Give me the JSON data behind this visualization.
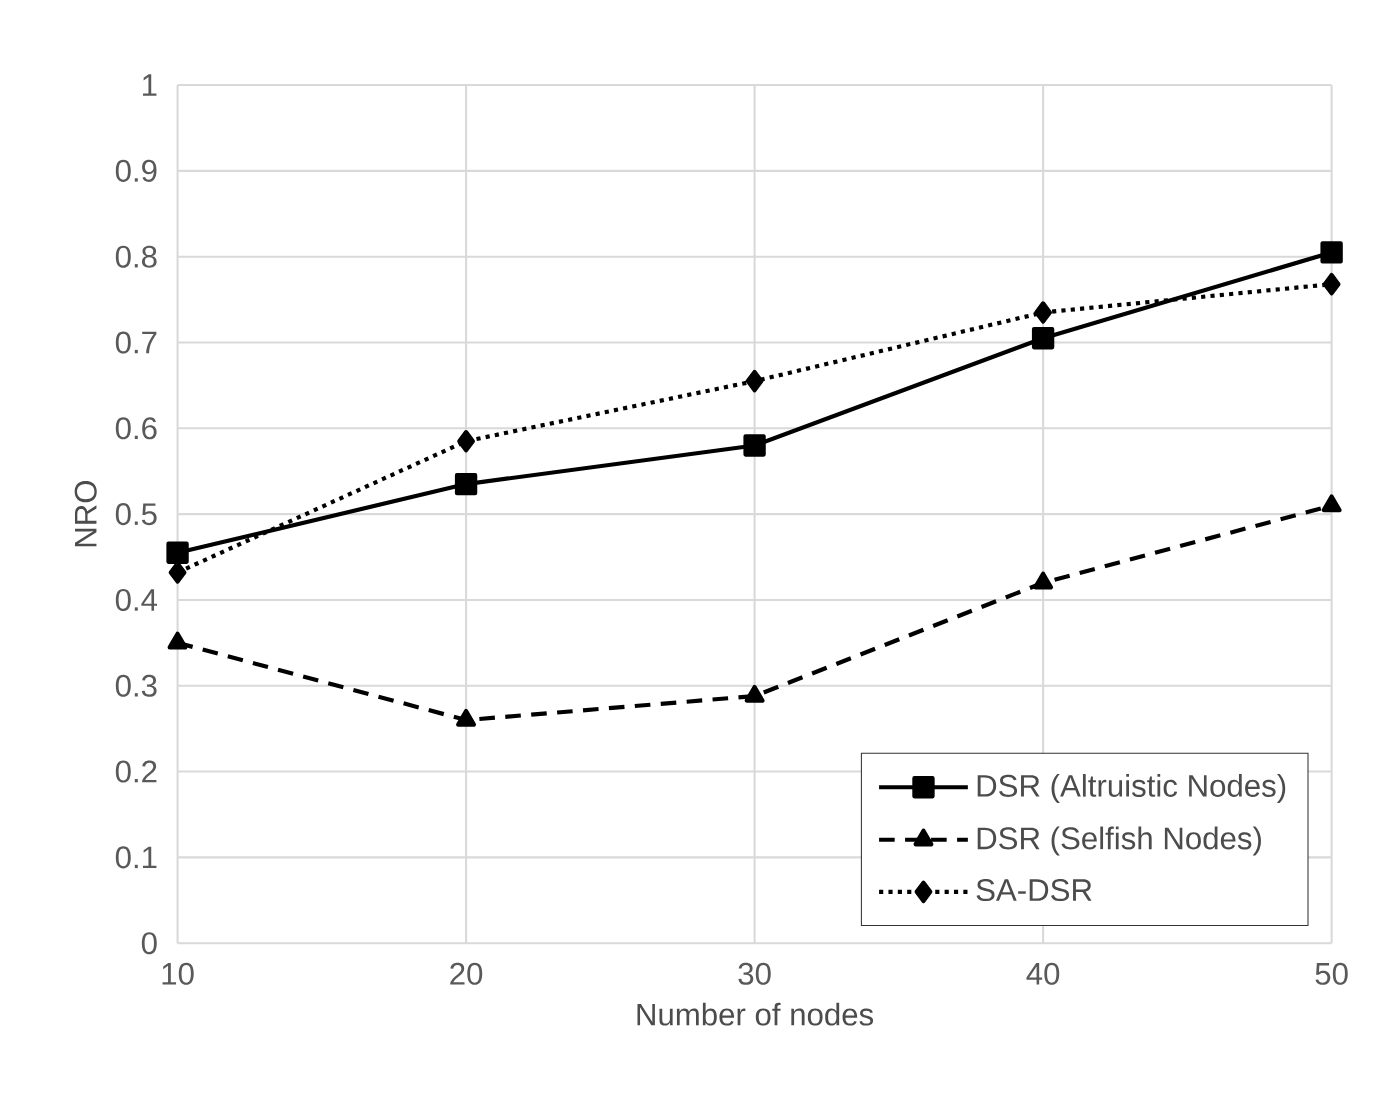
{
  "chart_data": {
    "type": "line",
    "xlabel": "Number of nodes",
    "ylabel": "NRO",
    "x": [
      10,
      20,
      30,
      40,
      50
    ],
    "xlim": [
      10,
      50
    ],
    "xticks": [
      10,
      20,
      30,
      40,
      50
    ],
    "ylim": [
      0,
      1
    ],
    "yticks": [
      0,
      0.1,
      0.2,
      0.3,
      0.4,
      0.5,
      0.6,
      0.7,
      0.8,
      0.9,
      1
    ],
    "grid": true,
    "legend": "bottom right",
    "series": [
      {
        "name": "DSR (Altruistic Nodes)",
        "color": "#000000",
        "marker": "square",
        "line_style": "solid",
        "values": [
          0.455,
          0.535,
          0.58,
          0.705,
          0.805
        ]
      },
      {
        "name": "DSR (Selfish Nodes)",
        "color": "#000000",
        "marker": "triangle",
        "line_style": "dashed",
        "values": [
          0.35,
          0.26,
          0.288,
          0.42,
          0.51
        ]
      },
      {
        "name": "SA-DSR",
        "color": "#000000",
        "marker": "diamond",
        "line_style": "dotted",
        "values": [
          0.432,
          0.585,
          0.655,
          0.735,
          0.768
        ]
      }
    ]
  }
}
